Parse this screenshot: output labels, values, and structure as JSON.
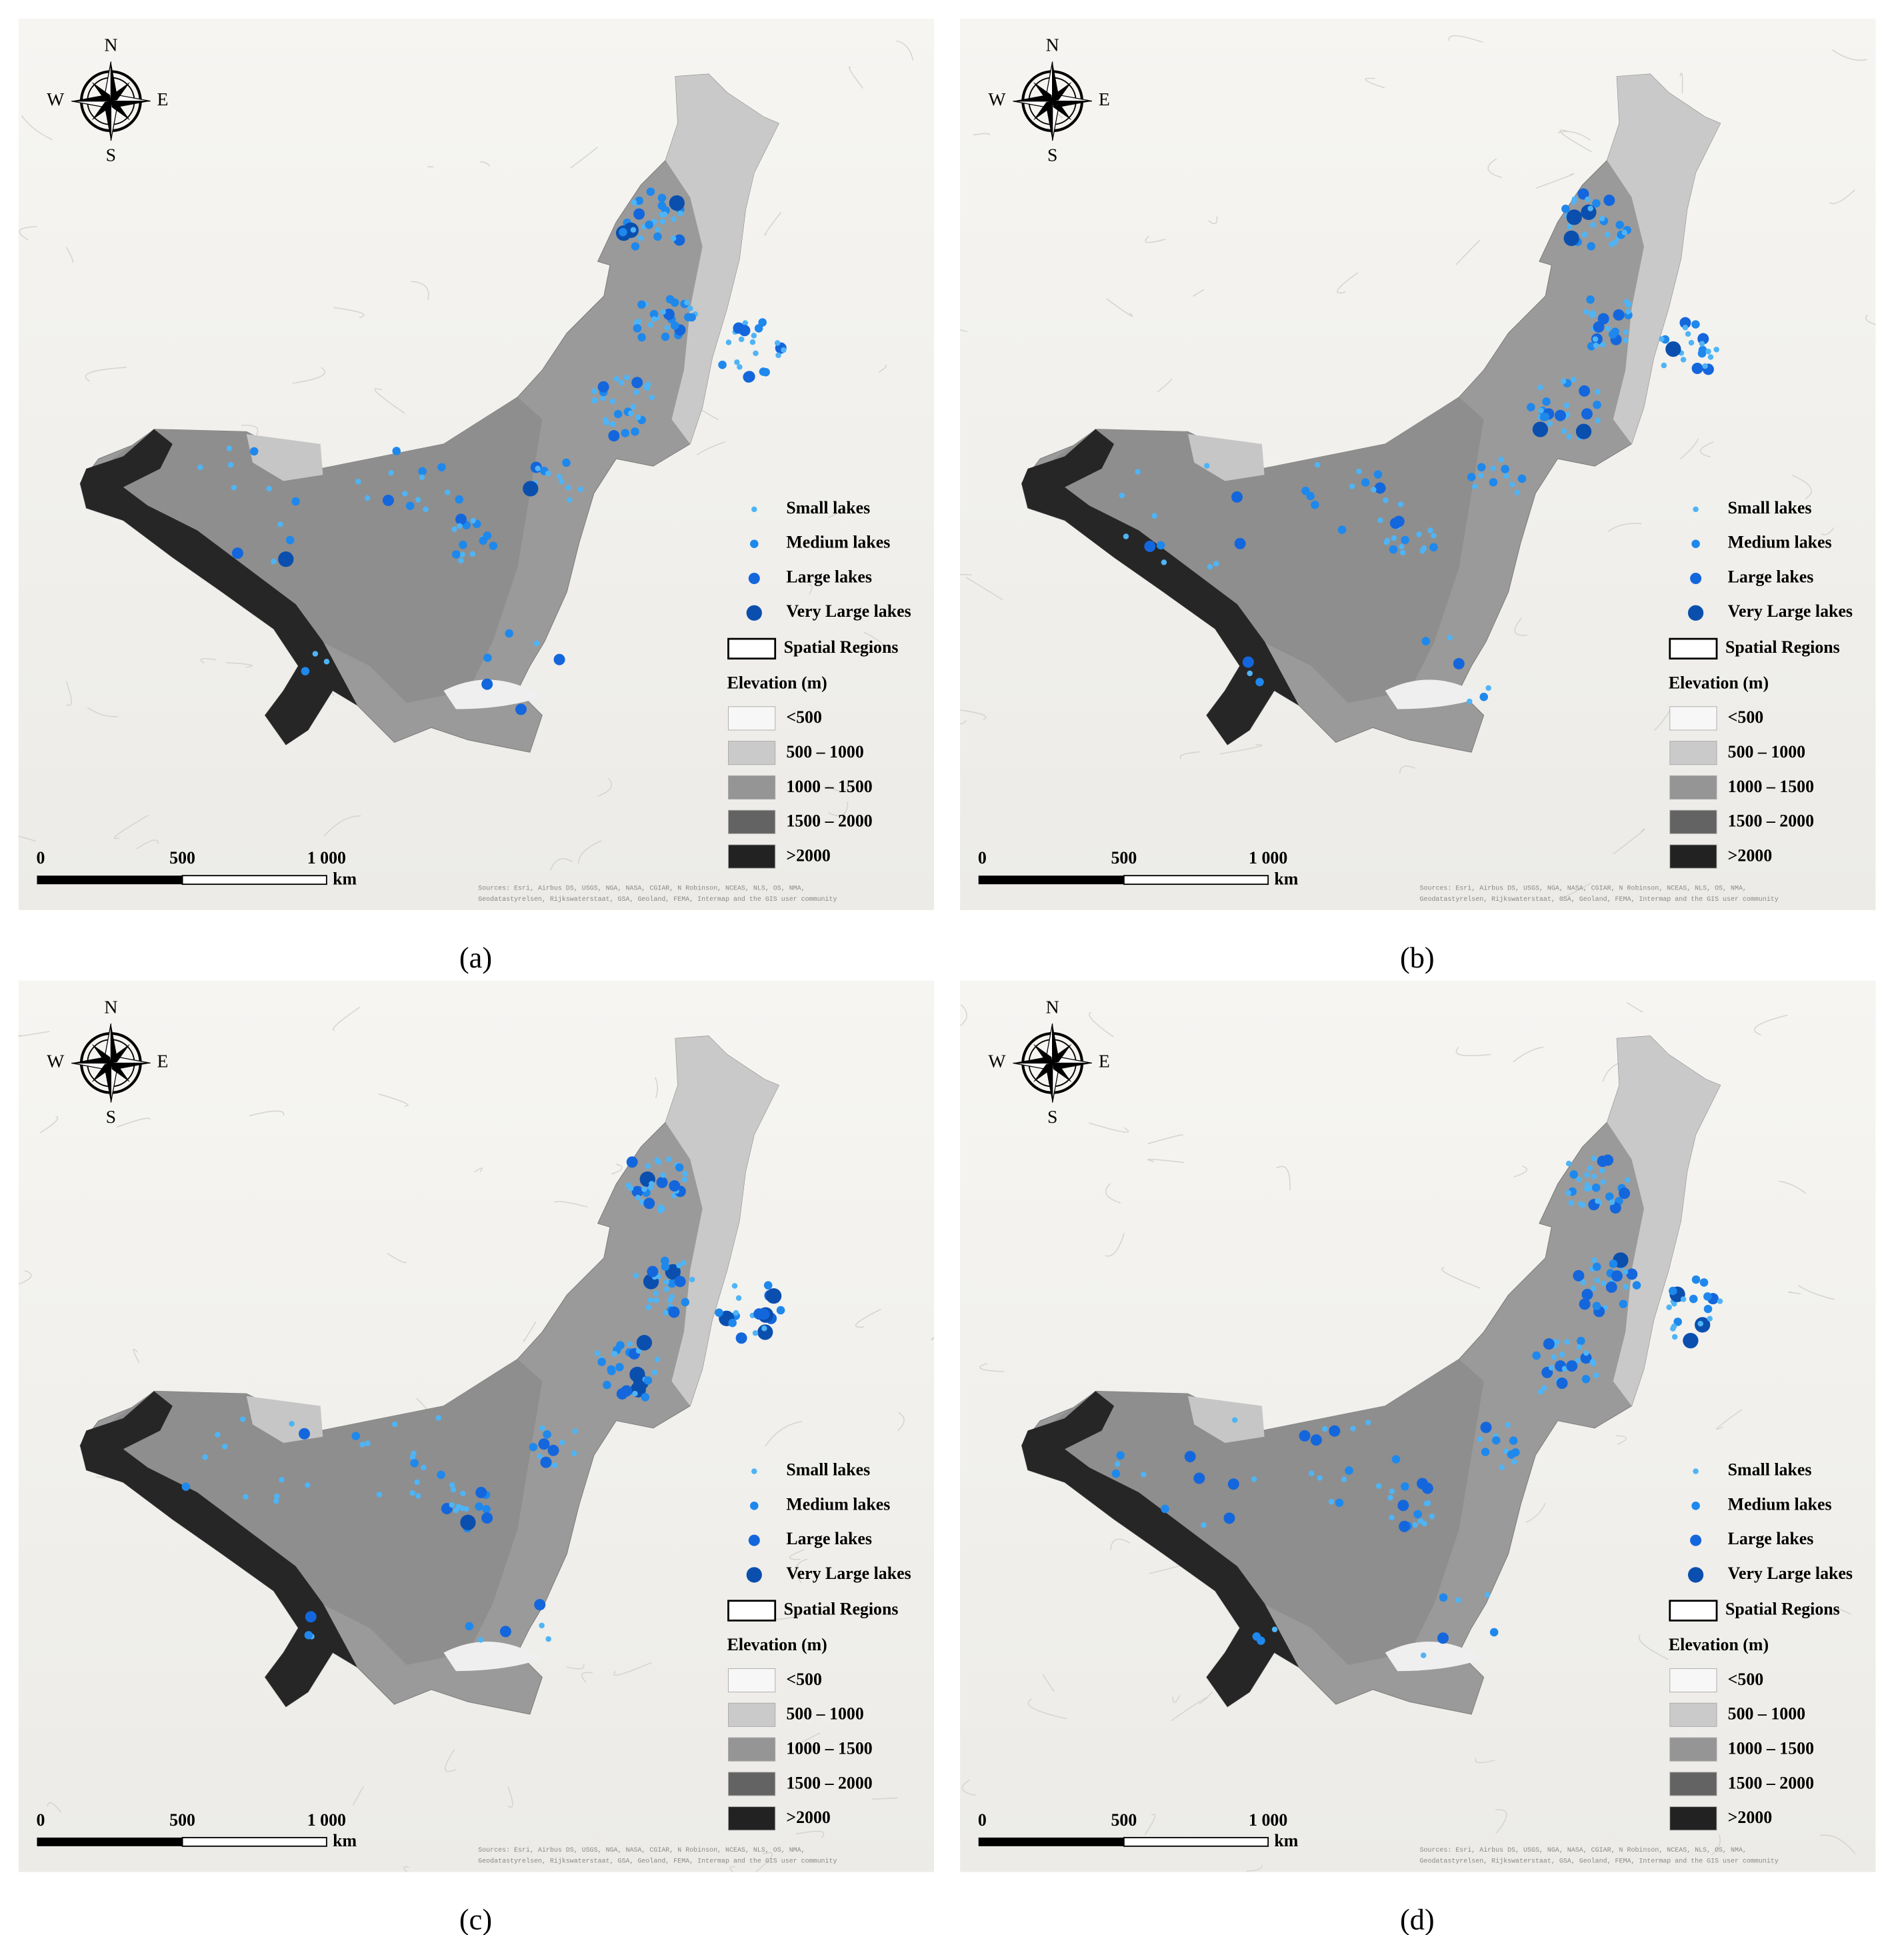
{
  "panels": [
    {
      "label": "(a)"
    },
    {
      "label": "(b)"
    },
    {
      "label": "(c)"
    },
    {
      "label": "(d)"
    }
  ],
  "compass": {
    "n": "N",
    "e": "E",
    "s": "S",
    "w": "W"
  },
  "legend": {
    "lakes": [
      "Small lakes",
      "Medium lakes",
      "Large lakes",
      "Very Large lakes"
    ],
    "regions": "Spatial Regions",
    "elevation_title": "Elevation (m)",
    "elevation_classes": [
      "<500",
      "500 – 1000",
      "1000 – 1500",
      "1500 – 2000",
      ">2000"
    ]
  },
  "scale_bar": {
    "labels": [
      "0",
      "500",
      "1 000"
    ],
    "unit": "km"
  },
  "sources": [
    "Sources: Esri, Airbus DS, USGS, NGA, NASA, CGIAR, N Robinson, NCEAS, NLS, OS, NMA,",
    "Geodatastyrelsen, Rijkswaterstaat, GSA, Geoland, FEMA, Intermap and the GIS user community"
  ]
}
